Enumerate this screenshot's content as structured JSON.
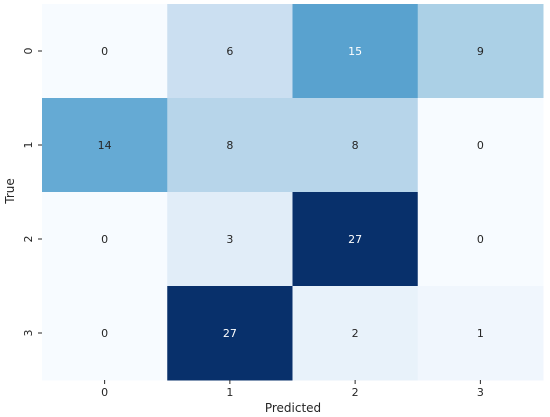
{
  "chart_data": {
    "type": "heatmap",
    "title": "",
    "xlabel": "Predicted",
    "ylabel": "True",
    "x_categories": [
      "0",
      "1",
      "2",
      "3"
    ],
    "y_categories": [
      "0",
      "1",
      "2",
      "3"
    ],
    "values": [
      [
        0,
        6,
        15,
        9
      ],
      [
        14,
        8,
        8,
        0
      ],
      [
        0,
        3,
        27,
        0
      ],
      [
        0,
        27,
        2,
        1
      ]
    ],
    "value_range": [
      0,
      27
    ],
    "colormap": "Blues",
    "colorbar": false,
    "annotated": true,
    "grid": false
  }
}
